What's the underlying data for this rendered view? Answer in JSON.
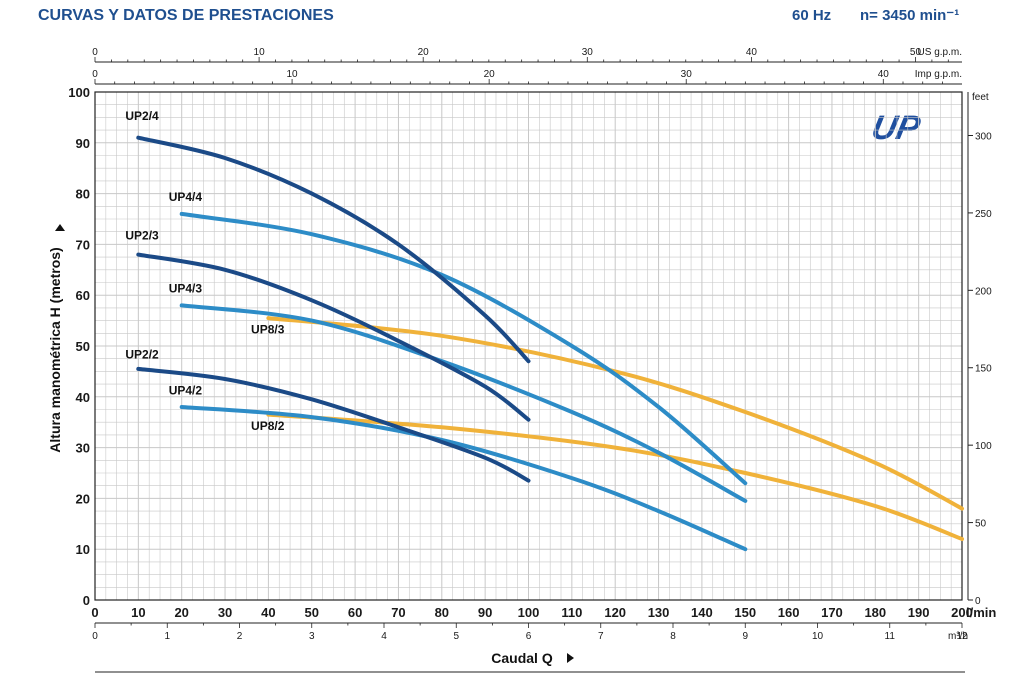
{
  "header": {
    "title": "CURVAS Y DATOS DE PRESTACIONES",
    "freq": "60 Hz",
    "speed": "n= 3450 min⁻¹"
  },
  "logo": {
    "text": "UP",
    "color": "#1f4f9f"
  },
  "colors": {
    "dark": "#1b4a87",
    "light": "#2d8cc7",
    "yellow": "#f0b23a",
    "grid": "#c8c8c8",
    "title": "#1f4f8f"
  },
  "chart_data": {
    "type": "line",
    "ylabel": "Altura manométrica H (metros)",
    "xlabel": "Caudal Q",
    "x_unit": "l/min",
    "xlim": [
      0,
      200
    ],
    "ylim": [
      0,
      100
    ],
    "x_ticks": [
      0,
      10,
      20,
      30,
      40,
      50,
      60,
      70,
      80,
      90,
      100,
      110,
      120,
      130,
      140,
      150,
      160,
      170,
      180,
      190,
      200
    ],
    "y_ticks": [
      0,
      10,
      20,
      30,
      40,
      50,
      60,
      70,
      80,
      90,
      100
    ],
    "secondary_axes": {
      "us_gpm": {
        "unit": "US g.p.m.",
        "ticks": [
          0,
          10,
          20,
          30,
          40,
          50
        ]
      },
      "imp_gpm": {
        "unit": "Imp g.p.m.",
        "ticks": [
          0,
          10,
          20,
          30,
          40
        ]
      },
      "feet": {
        "unit": "feet",
        "ticks": [
          0,
          50,
          100,
          150,
          200,
          250,
          300
        ]
      },
      "m3h": {
        "unit": "m³/h",
        "ticks": [
          0,
          1,
          2,
          3,
          4,
          5,
          6,
          7,
          8,
          9,
          10,
          11,
          12
        ]
      }
    },
    "series": [
      {
        "name": "UP2/4",
        "color": "dark",
        "x": [
          10,
          30,
          50,
          70,
          90,
          100
        ],
        "y": [
          91,
          87,
          80,
          70,
          56,
          47
        ]
      },
      {
        "name": "UP4/4",
        "color": "light",
        "x": [
          20,
          50,
          80,
          110,
          130,
          150
        ],
        "y": [
          76,
          72,
          64,
          50,
          38,
          23
        ]
      },
      {
        "name": "UP2/3",
        "color": "dark",
        "x": [
          10,
          30,
          50,
          70,
          90,
          100
        ],
        "y": [
          68,
          65,
          59,
          51,
          42,
          35.5
        ]
      },
      {
        "name": "UP4/3",
        "color": "light",
        "x": [
          20,
          50,
          80,
          110,
          130,
          150
        ],
        "y": [
          58,
          55,
          47,
          37,
          29,
          19.5
        ]
      },
      {
        "name": "UP8/3",
        "color": "yellow",
        "x": [
          40,
          80,
          120,
          150,
          180,
          200
        ],
        "y": [
          55.5,
          52,
          45,
          37,
          27,
          18
        ]
      },
      {
        "name": "UP2/2",
        "color": "dark",
        "x": [
          10,
          30,
          50,
          70,
          90,
          100
        ],
        "y": [
          45.5,
          43.5,
          39.5,
          34,
          28,
          23.5
        ]
      },
      {
        "name": "UP4/2",
        "color": "light",
        "x": [
          20,
          50,
          80,
          110,
          130,
          150
        ],
        "y": [
          38,
          36,
          31.5,
          24,
          17.5,
          10
        ]
      },
      {
        "name": "UP8/2",
        "color": "yellow",
        "x": [
          40,
          80,
          120,
          150,
          180,
          200
        ],
        "y": [
          36.5,
          34,
          30,
          25,
          18.5,
          12
        ]
      }
    ],
    "labels": [
      {
        "text": "UP2/4",
        "x": 7,
        "y": 94.5
      },
      {
        "text": "UP4/4",
        "x": 17,
        "y": 78.5
      },
      {
        "text": "UP2/3",
        "x": 7,
        "y": 71
      },
      {
        "text": "UP4/3",
        "x": 17,
        "y": 60.5
      },
      {
        "text": "UP8/3",
        "x": 36,
        "y": 52.5
      },
      {
        "text": "UP2/2",
        "x": 7,
        "y": 47.5
      },
      {
        "text": "UP4/2",
        "x": 17,
        "y": 40.5
      },
      {
        "text": "UP8/2",
        "x": 36,
        "y": 33.5
      }
    ]
  }
}
